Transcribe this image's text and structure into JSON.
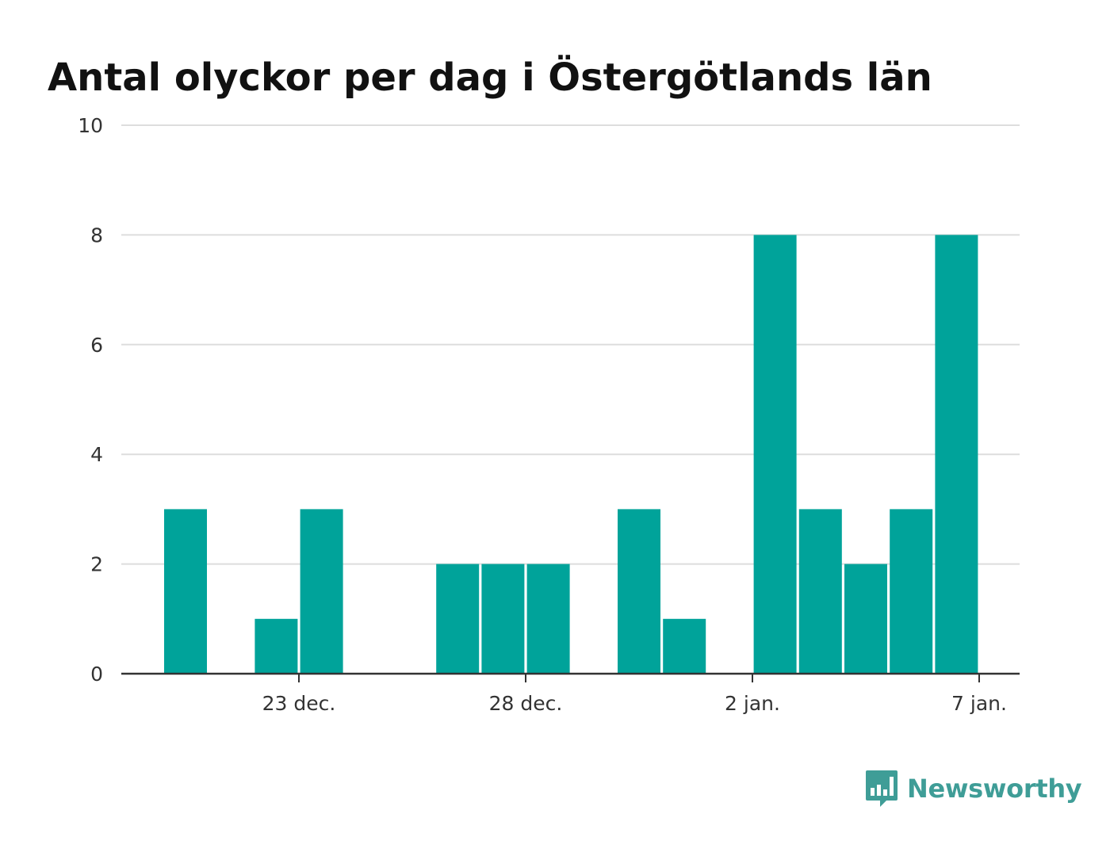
{
  "brand": {
    "name": "Newsworthy",
    "color": "#3f9d97",
    "icon": "bar-chart-bubble-icon"
  },
  "chart_data": {
    "type": "bar",
    "title": "Antal olyckor per dag i Östergötlands län",
    "xlabel": "",
    "ylabel": "",
    "ylim": [
      0,
      10
    ],
    "yticks": [
      0,
      2,
      4,
      6,
      8,
      10
    ],
    "grid": true,
    "bar_color": "#00a39a",
    "x": [
      "2021-12-20",
      "2021-12-21",
      "2021-12-22",
      "2021-12-23",
      "2021-12-24",
      "2021-12-25",
      "2021-12-26",
      "2021-12-27",
      "2021-12-28",
      "2021-12-29",
      "2021-12-30",
      "2021-12-31",
      "2022-01-01",
      "2022-01-02",
      "2022-01-03",
      "2022-01-04",
      "2022-01-05",
      "2022-01-06"
    ],
    "values": [
      3,
      0,
      1,
      3,
      0,
      0,
      2,
      2,
      2,
      0,
      3,
      1,
      0,
      8,
      3,
      2,
      3,
      8
    ],
    "xticks": [
      {
        "x": "2021-12-23",
        "label": "23 dec."
      },
      {
        "x": "2021-12-28",
        "label": "28 dec."
      },
      {
        "x": "2022-01-02",
        "label": "2 jan."
      },
      {
        "x": "2022-01-07",
        "label": "7 jan."
      }
    ]
  }
}
